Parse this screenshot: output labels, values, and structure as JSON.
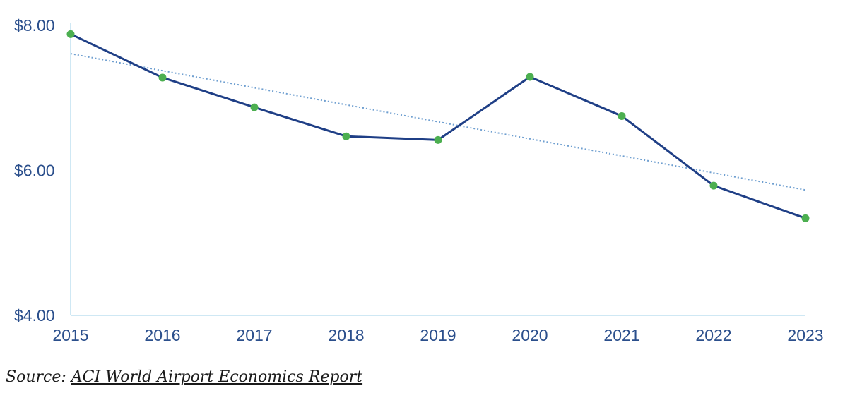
{
  "chart_data": {
    "type": "line",
    "x": [
      "2015",
      "2016",
      "2017",
      "2018",
      "2019",
      "2020",
      "2021",
      "2022",
      "2023"
    ],
    "series": [
      {
        "values": [
          7.88,
          7.28,
          6.87,
          6.47,
          6.42,
          7.29,
          6.75,
          5.79,
          5.34
        ],
        "color": "#1f3f86",
        "marker_color": "#4caf50"
      }
    ],
    "trendline": {
      "style": "dotted",
      "color": "#6f9fd0",
      "values": [
        7.61,
        5.73
      ]
    },
    "y_ticks": [
      "$8.00",
      "$6.00",
      "$4.00"
    ],
    "y_tick_values": [
      8,
      6,
      4
    ],
    "ylim": [
      4,
      8
    ],
    "title": "",
    "xlabel": "",
    "ylabel": "",
    "grid": false,
    "legend": "none",
    "axis_color": "#bfe0f0"
  },
  "source": {
    "prefix": "Source: ",
    "link_text": "ACI World Airport Economics Report"
  }
}
